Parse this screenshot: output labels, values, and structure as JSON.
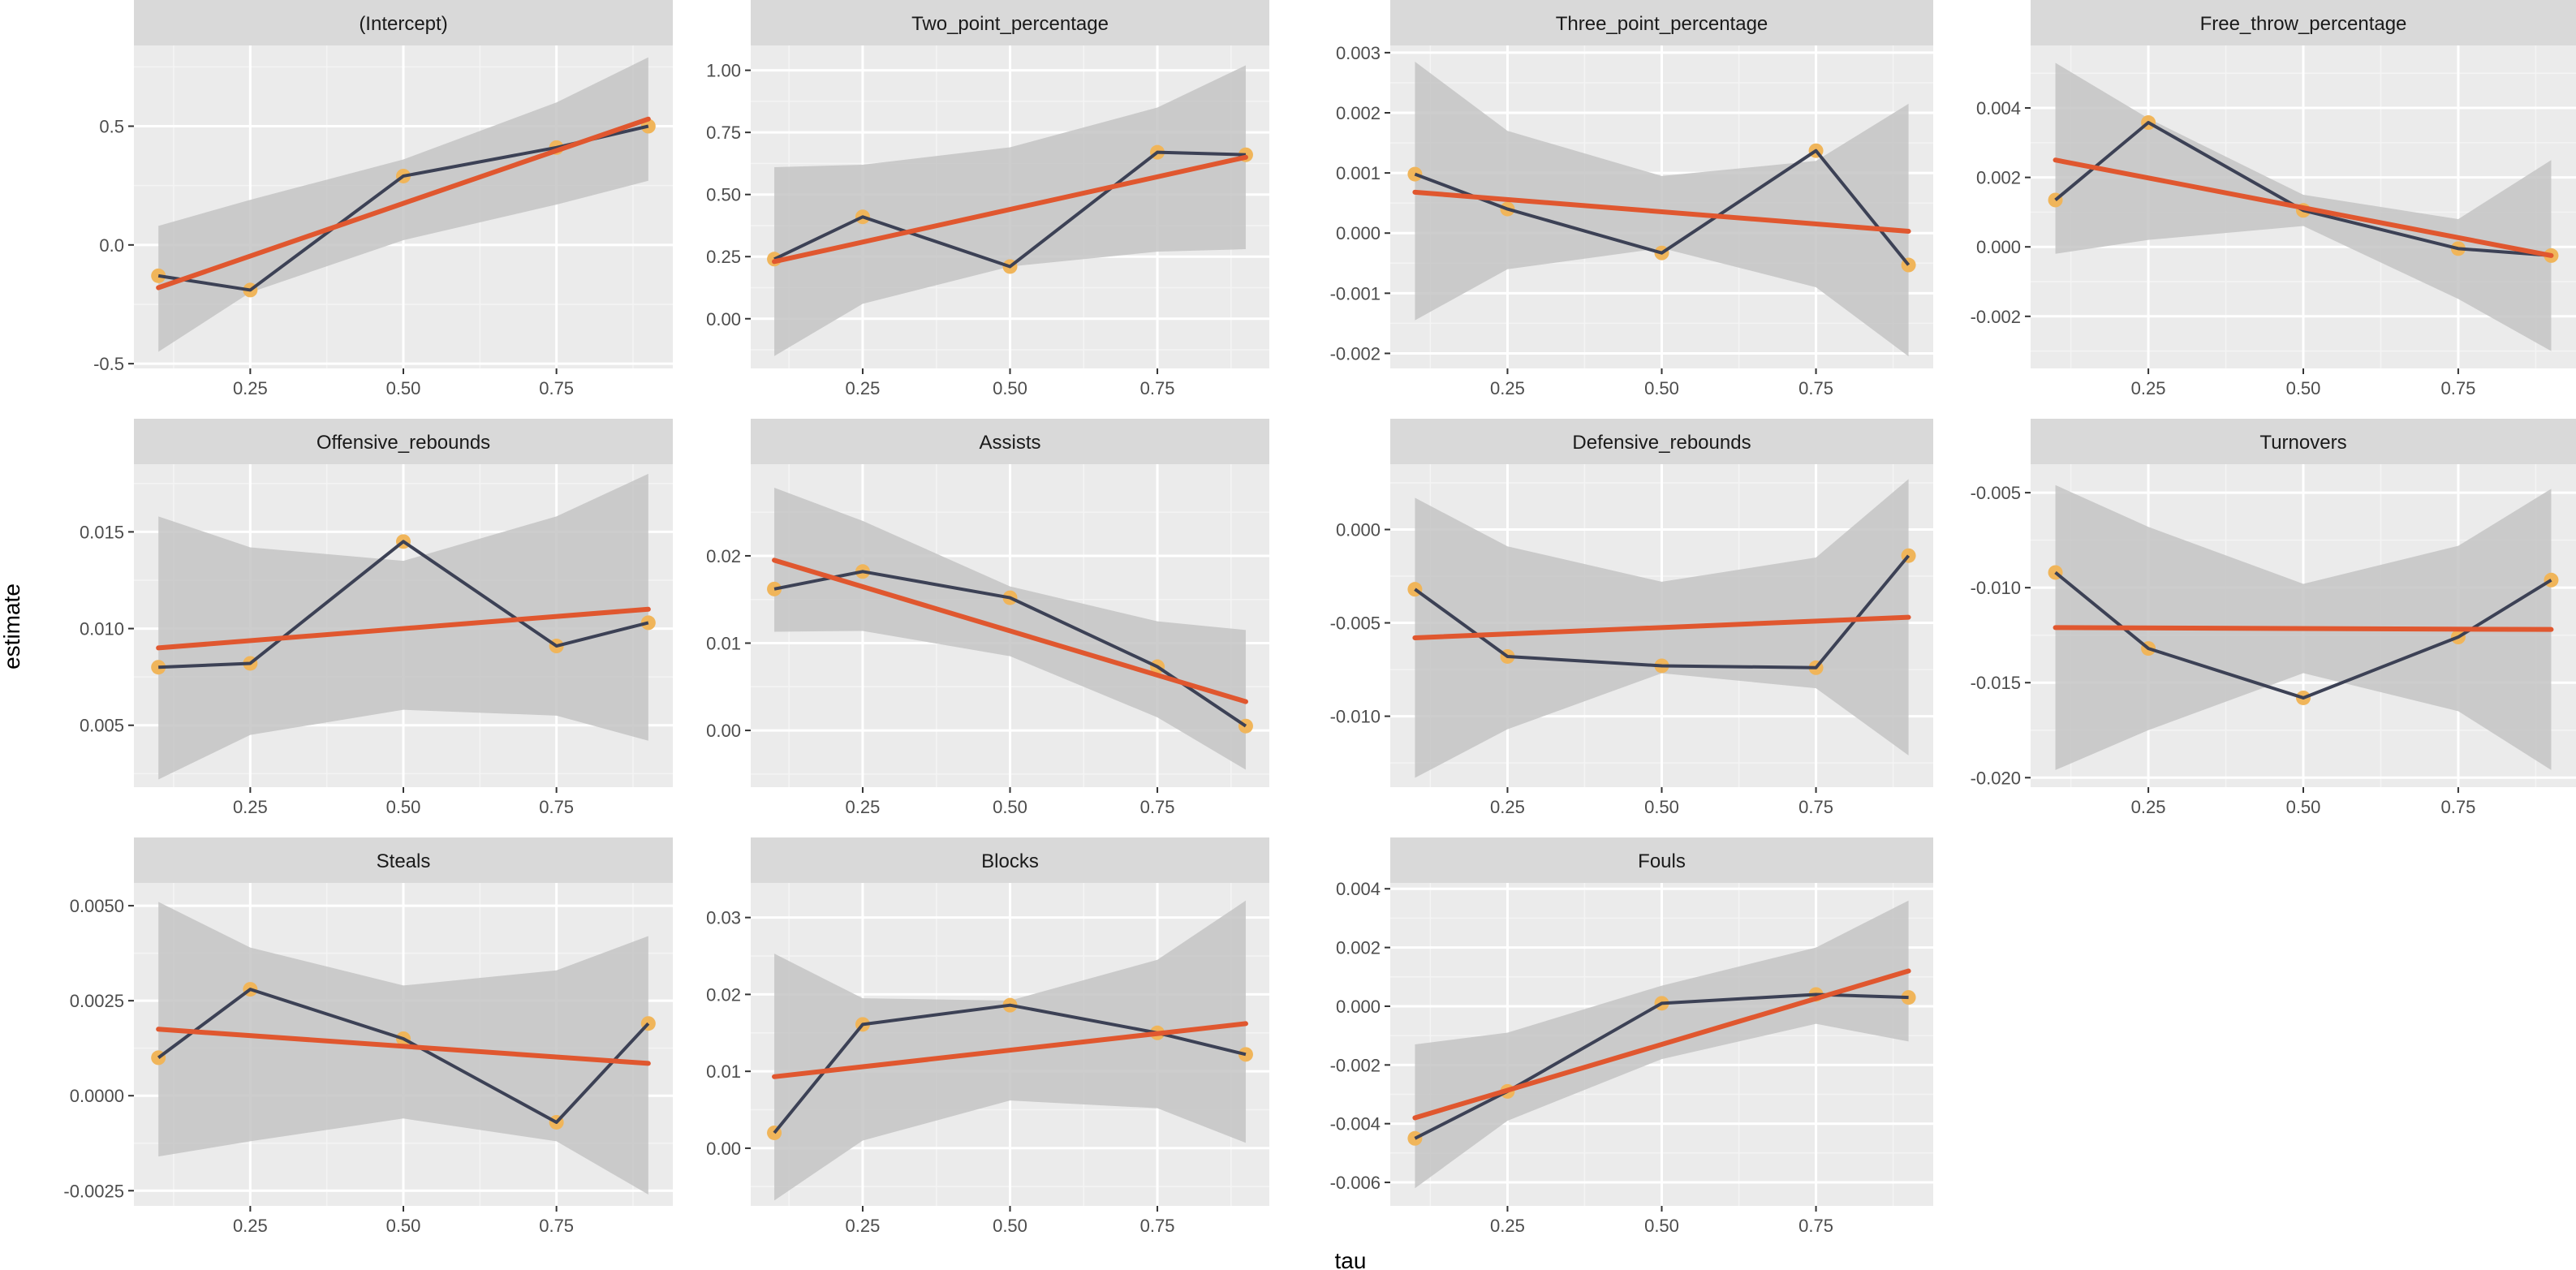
{
  "figure": {
    "xlabel": "tau",
    "ylabel": "estimate"
  },
  "colors": {
    "panel_bg": "#ebebeb",
    "strip_bg": "#d9d9d9",
    "grid_major": "#ffffff",
    "grid_minor": "#f4f4f4",
    "ribbon": "#c4c4c4",
    "series_line": "#3c4155",
    "points": "#f0b55a",
    "fit_line": "#e0572f"
  },
  "chart_data": [
    {
      "type": "line",
      "title": "(Intercept)",
      "x": [
        0.1,
        0.25,
        0.5,
        0.75,
        0.9
      ],
      "values": [
        -0.13,
        -0.19,
        0.29,
        0.41,
        0.5
      ],
      "fit": [
        -0.18,
        0.53
      ],
      "ribbon_lower": [
        -0.45,
        -0.2,
        0.02,
        0.17,
        0.27
      ],
      "ribbon_upper": [
        0.08,
        0.19,
        0.36,
        0.6,
        0.79
      ],
      "yticks": [
        -0.5,
        0,
        0.5
      ],
      "ytick_labels": [
        "-0.5",
        "0.0",
        "0.5"
      ],
      "ylim": [
        -0.52,
        0.84
      ]
    },
    {
      "type": "line",
      "title": "Two_point_percentage",
      "x": [
        0.1,
        0.25,
        0.5,
        0.75,
        0.9
      ],
      "values": [
        0.24,
        0.41,
        0.21,
        0.67,
        0.66
      ],
      "fit": [
        0.23,
        0.65
      ],
      "ribbon_lower": [
        -0.15,
        0.06,
        0.21,
        0.27,
        0.28
      ],
      "ribbon_upper": [
        0.61,
        0.62,
        0.69,
        0.85,
        1.02
      ],
      "yticks": [
        0,
        0.25,
        0.5,
        0.75,
        1.0
      ],
      "ytick_labels": [
        "0.00",
        "0.25",
        "0.50",
        "0.75",
        "1.00"
      ],
      "ylim": [
        -0.2,
        1.1
      ]
    },
    {
      "type": "line",
      "title": "Three_point_percentage",
      "x": [
        0.1,
        0.25,
        0.5,
        0.75,
        0.9
      ],
      "values": [
        0.00098,
        0.0004,
        -0.00033,
        0.00137,
        -0.00053
      ],
      "fit": [
        0.00068,
        3e-05
      ],
      "ribbon_lower": [
        -0.00145,
        -0.0006,
        -0.00025,
        -0.0009,
        -0.00205
      ],
      "ribbon_upper": [
        0.00285,
        0.0017,
        0.00095,
        0.0012,
        0.00215
      ],
      "yticks": [
        -0.002,
        -0.001,
        0,
        0.001,
        0.002,
        0.003
      ],
      "ytick_labels": [
        "-0.002",
        "-0.001",
        "0.000",
        "0.001",
        "0.002",
        "0.003"
      ],
      "ylim": [
        -0.00225,
        0.00312
      ]
    },
    {
      "type": "line",
      "title": "Free_throw_percentage",
      "x": [
        0.1,
        0.25,
        0.5,
        0.75,
        0.9
      ],
      "values": [
        0.00135,
        0.00358,
        0.00105,
        -5e-05,
        -0.00025
      ],
      "fit": [
        0.0025,
        -0.00025
      ],
      "ribbon_lower": [
        -0.0002,
        0.0002,
        0.0006,
        -0.0015,
        -0.003
      ],
      "ribbon_upper": [
        0.0053,
        0.0037,
        0.0015,
        0.0008,
        0.0025
      ],
      "yticks": [
        -0.002,
        0,
        0.002,
        0.004
      ],
      "ytick_labels": [
        "-0.002",
        "0.000",
        "0.002",
        "0.004"
      ],
      "ylim": [
        -0.0035,
        0.0058
      ]
    },
    {
      "type": "line",
      "title": "Offensive_rebounds",
      "x": [
        0.1,
        0.25,
        0.5,
        0.75,
        0.9
      ],
      "values": [
        0.008,
        0.0082,
        0.0145,
        0.0091,
        0.0103
      ],
      "fit": [
        0.009,
        0.011
      ],
      "ribbon_lower": [
        0.0022,
        0.0045,
        0.0058,
        0.0055,
        0.0042
      ],
      "ribbon_upper": [
        0.0158,
        0.0142,
        0.0135,
        0.0158,
        0.018
      ],
      "yticks": [
        0.005,
        0.01,
        0.015
      ],
      "ytick_labels": [
        "0.005",
        "0.010",
        "0.015"
      ],
      "ylim": [
        0.0018,
        0.0185
      ]
    },
    {
      "type": "line",
      "title": "Assists",
      "x": [
        0.1,
        0.25,
        0.5,
        0.75,
        0.9
      ],
      "values": [
        0.0162,
        0.0182,
        0.0152,
        0.0073,
        0.0005
      ],
      "fit": [
        0.0195,
        0.0033
      ],
      "ribbon_lower": [
        0.0113,
        0.0114,
        0.0085,
        0.0015,
        -0.0045
      ],
      "ribbon_upper": [
        0.0278,
        0.024,
        0.0165,
        0.0125,
        0.0115
      ],
      "yticks": [
        0,
        0.01,
        0.02
      ],
      "ytick_labels": [
        "0.00",
        "0.01",
        "0.02"
      ],
      "ylim": [
        -0.0065,
        0.0305
      ]
    },
    {
      "type": "line",
      "title": "Defensive_rebounds",
      "x": [
        0.1,
        0.25,
        0.5,
        0.75,
        0.9
      ],
      "values": [
        -0.0032,
        -0.0068,
        -0.0073,
        -0.0074,
        -0.0014
      ],
      "fit": [
        -0.0058,
        -0.0047
      ],
      "ribbon_lower": [
        -0.0133,
        -0.0107,
        -0.0077,
        -0.0085,
        -0.0121
      ],
      "ribbon_upper": [
        0.0017,
        -0.0009,
        -0.0028,
        -0.0015,
        0.0027
      ],
      "yticks": [
        -0.01,
        -0.005,
        0
      ],
      "ytick_labels": [
        "-0.010",
        "-0.005",
        "0.000"
      ],
      "ylim": [
        -0.0138,
        0.0035
      ]
    },
    {
      "type": "line",
      "title": "Turnovers",
      "x": [
        0.1,
        0.25,
        0.5,
        0.75,
        0.9
      ],
      "values": [
        -0.0092,
        -0.0132,
        -0.0158,
        -0.0126,
        -0.0096
      ],
      "fit": [
        -0.0121,
        -0.0122
      ],
      "ribbon_lower": [
        -0.0196,
        -0.0175,
        -0.0145,
        -0.0165,
        -0.0196
      ],
      "ribbon_upper": [
        -0.0046,
        -0.0068,
        -0.0098,
        -0.0078,
        -0.0048
      ],
      "yticks": [
        -0.02,
        -0.015,
        -0.01,
        -0.005
      ],
      "ytick_labels": [
        "-0.020",
        "-0.015",
        "-0.010",
        "-0.005"
      ],
      "ylim": [
        -0.0205,
        -0.0035
      ]
    },
    {
      "type": "line",
      "title": "Steals",
      "x": [
        0.1,
        0.25,
        0.5,
        0.75,
        0.9
      ],
      "values": [
        0.001,
        0.0028,
        0.0015,
        -0.0007,
        0.0019
      ],
      "fit": [
        0.00175,
        0.00085
      ],
      "ribbon_lower": [
        -0.0016,
        -0.0012,
        -0.0006,
        -0.0012,
        -0.0026
      ],
      "ribbon_upper": [
        0.0051,
        0.0039,
        0.0029,
        0.0033,
        0.0042
      ],
      "yticks": [
        -0.0025,
        0,
        0.0025,
        0.005
      ],
      "ytick_labels": [
        "-0.0025",
        "0.0000",
        "0.0025",
        "0.0050"
      ],
      "ylim": [
        -0.0029,
        0.0056
      ]
    },
    {
      "type": "line",
      "title": "Blocks",
      "x": [
        0.1,
        0.25,
        0.5,
        0.75,
        0.9
      ],
      "values": [
        0.002,
        0.0161,
        0.0186,
        0.015,
        0.0122
      ],
      "fit": [
        0.0093,
        0.0162
      ],
      "ribbon_lower": [
        -0.0068,
        0.001,
        0.0062,
        0.0052,
        0.0007
      ],
      "ribbon_upper": [
        0.0253,
        0.0195,
        0.0192,
        0.0245,
        0.0322
      ],
      "yticks": [
        0,
        0.01,
        0.02,
        0.03
      ],
      "ytick_labels": [
        "0.00",
        "0.01",
        "0.02",
        "0.03"
      ],
      "ylim": [
        -0.0075,
        0.0345
      ]
    },
    {
      "type": "line",
      "title": "Fouls",
      "x": [
        0.1,
        0.25,
        0.5,
        0.75,
        0.9
      ],
      "values": [
        -0.0045,
        -0.0029,
        0.0001,
        0.0004,
        0.0003
      ],
      "fit": [
        -0.0038,
        0.0012
      ],
      "ribbon_lower": [
        -0.0062,
        -0.0039,
        -0.0018,
        -0.0006,
        -0.0012
      ],
      "ribbon_upper": [
        -0.0013,
        -0.0009,
        0.0007,
        0.002,
        0.0036
      ],
      "yticks": [
        -0.006,
        -0.004,
        -0.002,
        0,
        0.002,
        0.004
      ],
      "ytick_labels": [
        "-0.006",
        "-0.004",
        "-0.002",
        "0.000",
        "0.002",
        "0.004"
      ],
      "ylim": [
        -0.0068,
        0.0042
      ]
    }
  ],
  "x_axis": {
    "xlim": [
      0.06,
      0.94
    ],
    "ticks": [
      0.25,
      0.5,
      0.75
    ],
    "tick_labels": [
      "0.25",
      "0.50",
      "0.75"
    ]
  }
}
